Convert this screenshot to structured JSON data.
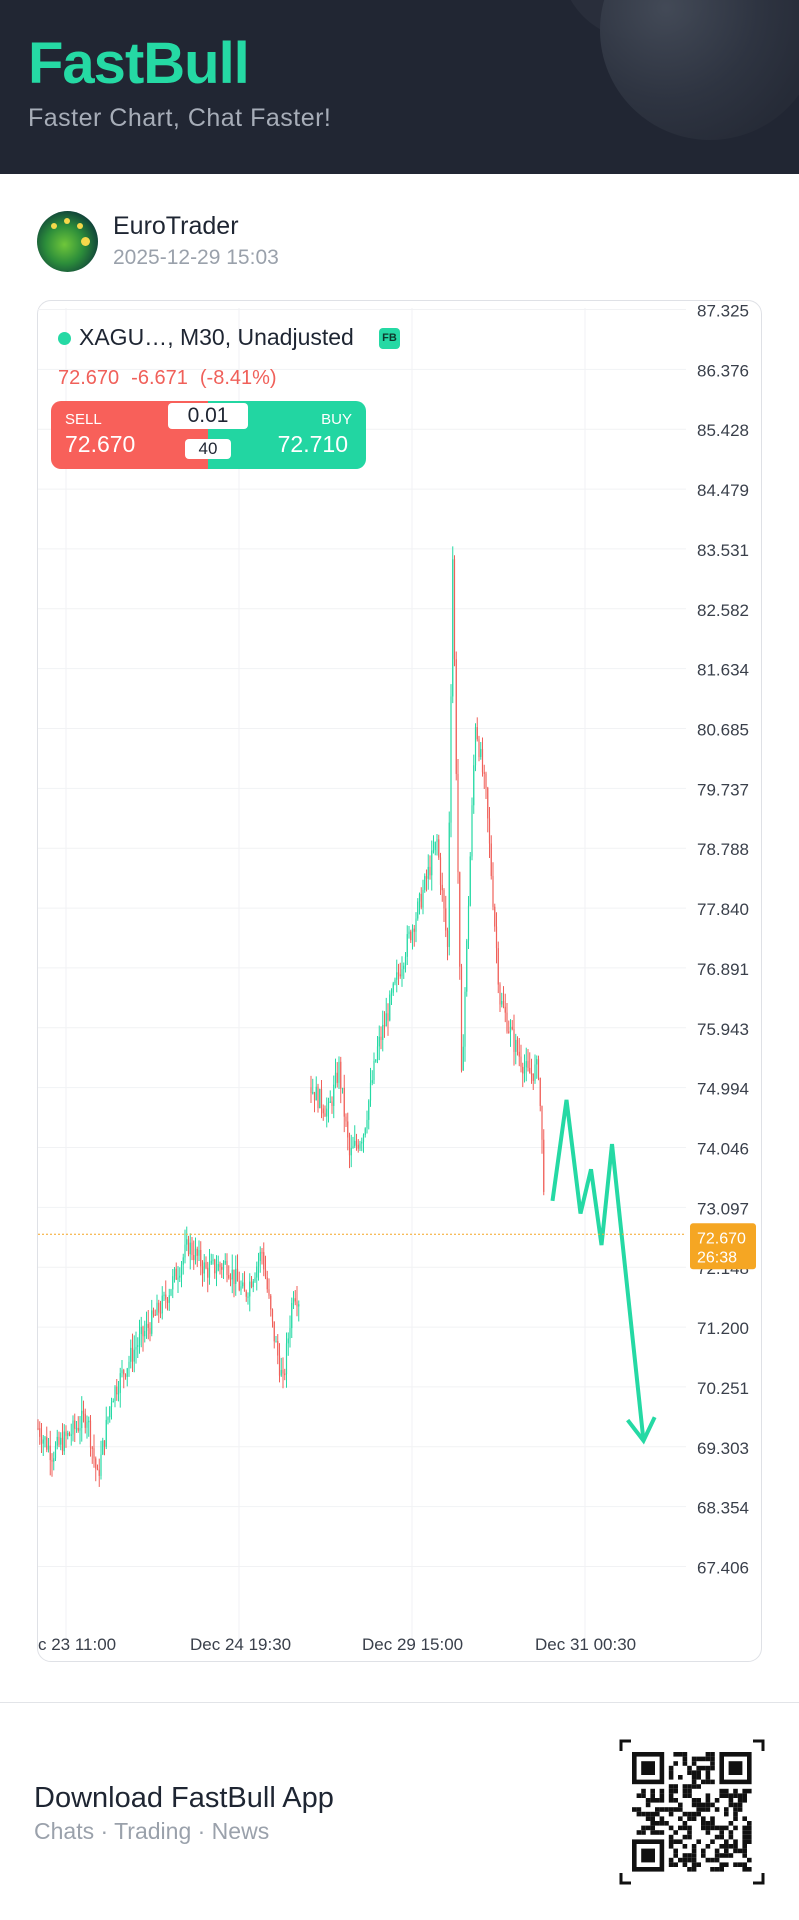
{
  "header": {
    "brand": "FastBull",
    "tagline": "Faster Chart, Chat Faster!"
  },
  "post": {
    "author": "EuroTrader",
    "timestamp": "2025-12-29 15:03"
  },
  "instrument": {
    "symbol": "XAGU…",
    "suffix": ", M30, Unadjusted",
    "badge": "FB",
    "last": "72.670",
    "change": "-6.671",
    "change_pct": "(-8.41%)"
  },
  "trade": {
    "sell_label": "SELL",
    "sell_price": "72.670",
    "buy_label": "BUY",
    "buy_price": "72.710",
    "lot": "0.01",
    "qty": "40"
  },
  "colors": {
    "up": "#25d9a4",
    "down": "#f0605a",
    "current": "#f5a623",
    "accent": "#25d9a4",
    "header_bg": "#212633"
  },
  "chart_data": {
    "type": "candlestick",
    "timeframe": "M30",
    "yticks": [
      "87.325",
      "86.376",
      "85.428",
      "84.479",
      "83.531",
      "82.582",
      "81.634",
      "80.685",
      "79.737",
      "78.788",
      "77.840",
      "76.891",
      "75.943",
      "74.994",
      "74.046",
      "73.097",
      "72.148",
      "71.200",
      "70.251",
      "69.303",
      "68.354",
      "67.406"
    ],
    "ylim": [
      66.5,
      87.6
    ],
    "xticks": [
      "c 23 11:00",
      "Dec 24 19:30",
      "Dec 29 15:00",
      "Dec 31 00:30"
    ],
    "current_price": {
      "value": 72.67,
      "label": "72.670",
      "countdown": "26:38"
    },
    "segments": [
      {
        "start": 0,
        "open": 69.6,
        "anchors": [
          [
            0,
            69.6
          ],
          [
            8,
            69.2
          ],
          [
            18,
            69.5
          ],
          [
            28,
            69.8
          ],
          [
            34,
            68.8
          ],
          [
            42,
            70.1
          ],
          [
            56,
            70.9
          ],
          [
            72,
            71.6
          ],
          [
            86,
            72.5
          ],
          [
            96,
            72.1
          ],
          [
            108,
            72.2
          ],
          [
            118,
            71.7
          ],
          [
            128,
            72.4
          ],
          [
            134,
            71.2
          ],
          [
            140,
            70.3
          ],
          [
            146,
            71.8
          ],
          [
            150,
            71.6
          ]
        ]
      },
      {
        "start": 156,
        "open": 75.0,
        "anchors": [
          [
            0,
            75.0
          ],
          [
            10,
            74.6
          ],
          [
            16,
            75.3
          ],
          [
            22,
            73.9
          ],
          [
            30,
            74.3
          ],
          [
            38,
            75.6
          ],
          [
            46,
            76.4
          ],
          [
            54,
            77.2
          ],
          [
            62,
            77.9
          ],
          [
            72,
            78.9
          ],
          [
            78,
            77.2
          ],
          [
            81,
            83.4
          ],
          [
            86,
            75.1
          ],
          [
            94,
            80.8
          ],
          [
            100,
            79.6
          ],
          [
            108,
            76.4
          ],
          [
            116,
            75.7
          ],
          [
            124,
            75.2
          ],
          [
            130,
            75.3
          ],
          [
            134,
            72.9
          ]
        ]
      }
    ],
    "annotation": {
      "type": "arrow",
      "color": "#25d9a4",
      "points": [
        [
          294,
          73.2
        ],
        [
          302,
          74.8
        ],
        [
          310,
          73.0
        ],
        [
          316,
          73.7
        ],
        [
          322,
          72.5
        ],
        [
          328,
          74.1
        ],
        [
          346,
          69.4
        ]
      ]
    }
  },
  "footer": {
    "title": "Download FastBull App",
    "subtitle": "Chats · Trading · News"
  }
}
